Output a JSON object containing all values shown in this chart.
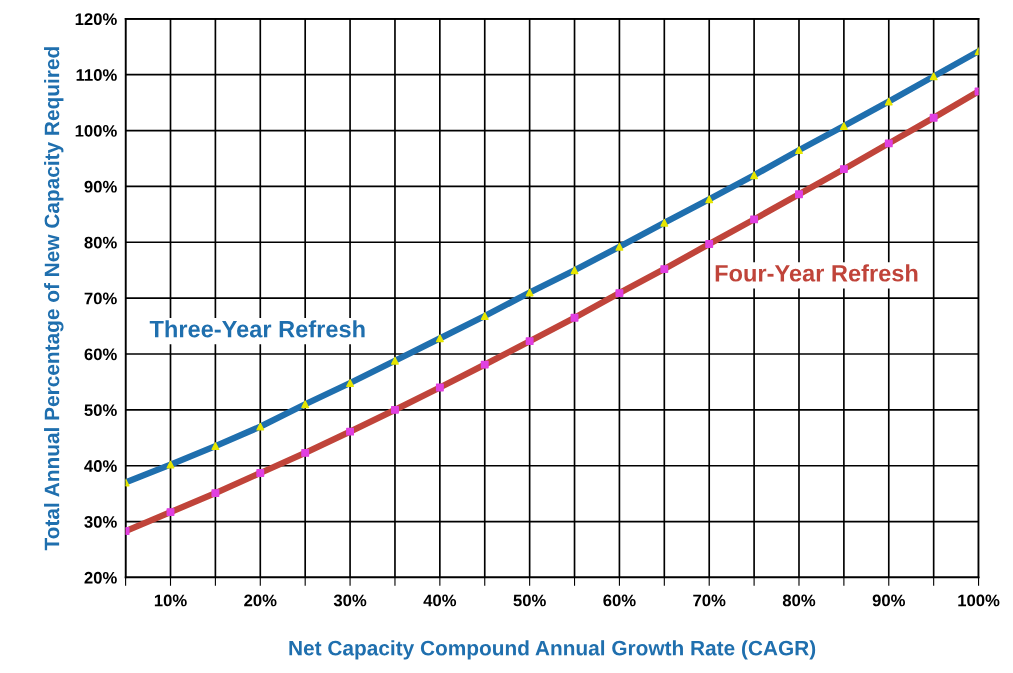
{
  "chart_data": {
    "type": "line",
    "xlabel": "Net Capacity Compound Annual Growth Rate (CAGR)",
    "ylabel": "Total Annual Percentage of New Capacity Required",
    "x": [
      5,
      10,
      15,
      20,
      25,
      30,
      35,
      40,
      45,
      50,
      55,
      60,
      65,
      70,
      75,
      80,
      85,
      90,
      95,
      100
    ],
    "series": [
      {
        "name": "Three-Year Refresh",
        "color": "#1f6fae",
        "values": [
          37,
          40.2,
          43.5,
          47,
          51,
          54.8,
          58.8,
          62.8,
          66.8,
          71,
          75,
          79.2,
          83.5,
          87.7,
          92,
          96.5,
          100.8,
          105.2,
          109.7,
          114.2
        ]
      },
      {
        "name": "Four-Year Refresh",
        "color": "#c0443a",
        "values": [
          28.3,
          31.7,
          35.1,
          38.7,
          42.3,
          46.1,
          50,
          54,
          58.1,
          62.3,
          66.5,
          70.9,
          75.2,
          79.7,
          84.1,
          88.6,
          93.1,
          97.7,
          102.3,
          107
        ]
      },
      {
        "color": "#e6e600",
        "type": "scatter",
        "marker": "triangle",
        "values": [
          37,
          40.2,
          43.5,
          47,
          51,
          54.8,
          58.8,
          62.8,
          66.8,
          71,
          75,
          79.2,
          83.5,
          87.7,
          92,
          96.5,
          100.8,
          105.2,
          109.7,
          114.2
        ]
      },
      {
        "color": "#e040e0",
        "type": "scatter",
        "marker": "square",
        "values": [
          28.3,
          31.7,
          35.1,
          38.7,
          42.3,
          46.1,
          50,
          54,
          58.1,
          62.3,
          66.5,
          70.9,
          75.2,
          79.7,
          84.1,
          88.6,
          93.1,
          97.7,
          102.3,
          107
        ]
      }
    ],
    "xlim": [
      5,
      100
    ],
    "xticks": [
      {
        "value": 5,
        "label": null
      },
      {
        "value": 10,
        "label": "10%"
      },
      {
        "value": 15,
        "label": null
      },
      {
        "value": 20,
        "label": "20%"
      },
      {
        "value": 25,
        "label": null
      },
      {
        "value": 30,
        "label": "30%"
      },
      {
        "value": 35,
        "label": null
      },
      {
        "value": 40,
        "label": "40%"
      },
      {
        "value": 45,
        "label": null
      },
      {
        "value": 50,
        "label": "50%"
      },
      {
        "value": 55,
        "label": null
      },
      {
        "value": 60,
        "label": "60%"
      },
      {
        "value": 65,
        "label": null
      },
      {
        "value": 70,
        "label": "70%"
      },
      {
        "value": 75,
        "label": null
      },
      {
        "value": 80,
        "label": "80%"
      },
      {
        "value": 85,
        "label": null
      },
      {
        "value": 90,
        "label": "90%"
      },
      {
        "value": 95,
        "label": null
      },
      {
        "value": 100,
        "label": "100%"
      }
    ],
    "ylim": [
      20,
      120
    ],
    "yticks": [
      {
        "value": 20,
        "label": "20%"
      },
      {
        "value": 30,
        "label": "30%"
      },
      {
        "value": 40,
        "label": "40%"
      },
      {
        "value": 50,
        "label": "50%"
      },
      {
        "value": 60,
        "label": "60%"
      },
      {
        "value": 70,
        "label": "70%"
      },
      {
        "value": 80,
        "label": "80%"
      },
      {
        "value": 90,
        "label": "90%"
      },
      {
        "value": 100,
        "label": "100%"
      },
      {
        "value": 110,
        "label": "110%"
      },
      {
        "value": 120,
        "label": "120%"
      }
    ],
    "grid": true,
    "legend": false,
    "line_style": "solid"
  }
}
